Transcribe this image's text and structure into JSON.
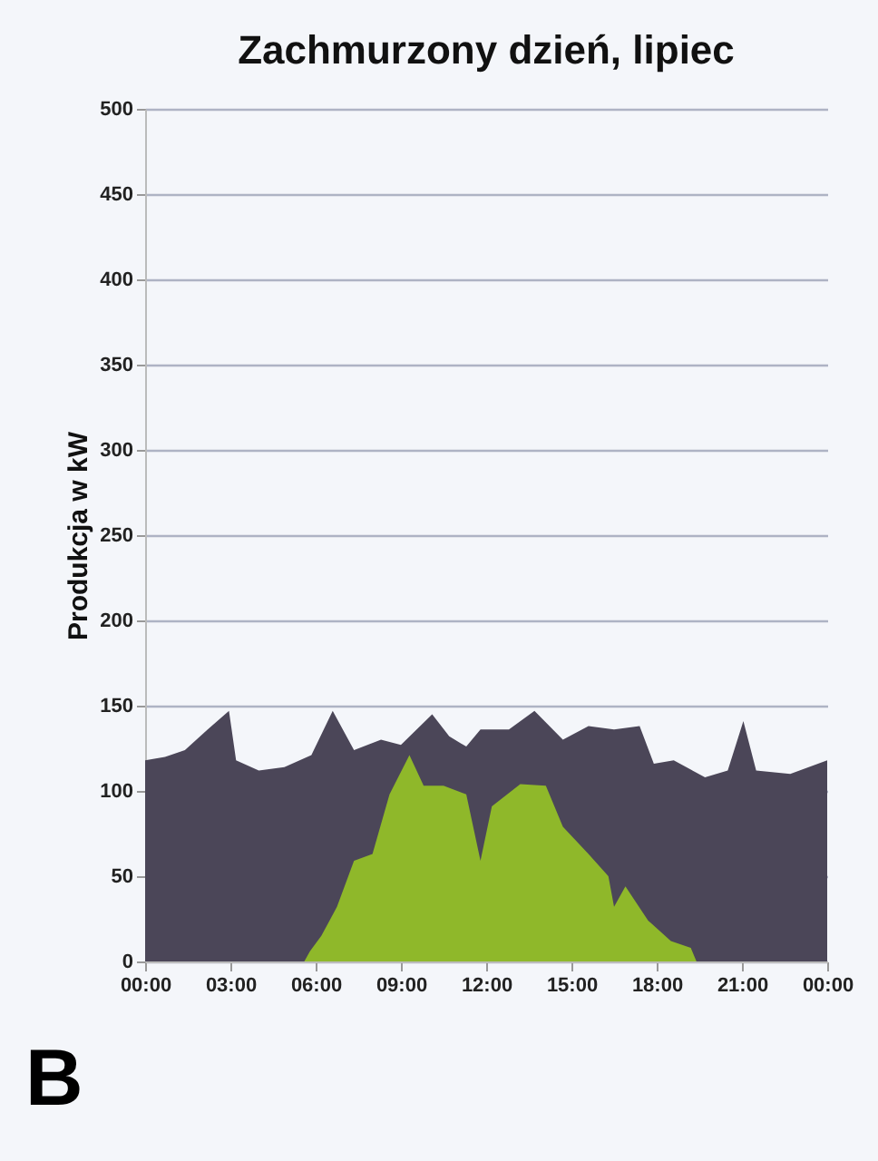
{
  "chart_data": {
    "type": "area",
    "title": "Zachmurzony dzień, lipiec",
    "ylabel": "Produkcja w kW",
    "annotations": [
      "B"
    ],
    "xlim": [
      0,
      24
    ],
    "xticks": [
      {
        "value": 0,
        "label": "00:00"
      },
      {
        "value": 3,
        "label": "03:00"
      },
      {
        "value": 6,
        "label": "06:00"
      },
      {
        "value": 9,
        "label": "09:00"
      },
      {
        "value": 12,
        "label": "12:00"
      },
      {
        "value": 15,
        "label": "15:00"
      },
      {
        "value": 18,
        "label": "18:00"
      },
      {
        "value": 21,
        "label": "21:00"
      },
      {
        "value": 24,
        "label": "00:00"
      }
    ],
    "ylim": [
      0,
      500
    ],
    "yticks": [
      0,
      50,
      100,
      150,
      200,
      250,
      300,
      350,
      400,
      450,
      500
    ],
    "grid": "y",
    "series": [
      {
        "color": "#4b4658",
        "x": [
          0,
          0.7,
          1.4,
          2.2,
          2.95,
          3.2,
          4.0,
          4.9,
          5.85,
          6.6,
          7.35,
          8.3,
          9.0,
          10.1,
          10.7,
          11.3,
          11.8,
          12.8,
          13.7,
          14.7,
          15.6,
          16.5,
          17.4,
          17.9,
          18.6,
          19.7,
          20.5,
          21.05,
          21.5,
          22.7,
          24
        ],
        "values": [
          118,
          120,
          124,
          136,
          147,
          118,
          112,
          114,
          121,
          147,
          124,
          130,
          127,
          145,
          132,
          126,
          136,
          136,
          147,
          130,
          138,
          136,
          138,
          116,
          118,
          108,
          112,
          141,
          112,
          110,
          118
        ]
      },
      {
        "color": "#8fb82a",
        "x": [
          5.6,
          5.8,
          6.2,
          6.75,
          7.35,
          8.0,
          8.6,
          9.3,
          9.8,
          10.5,
          11.3,
          11.8,
          12.2,
          13.2,
          14.1,
          14.7,
          15.6,
          16.3,
          16.5,
          16.9,
          17.7,
          18.5,
          19.2,
          19.4
        ],
        "values": [
          0,
          6,
          15,
          32,
          59,
          63,
          98,
          121,
          103,
          103,
          98,
          59,
          91,
          104,
          103,
          79,
          63,
          50,
          32,
          44,
          24,
          12,
          8,
          0
        ]
      }
    ]
  }
}
